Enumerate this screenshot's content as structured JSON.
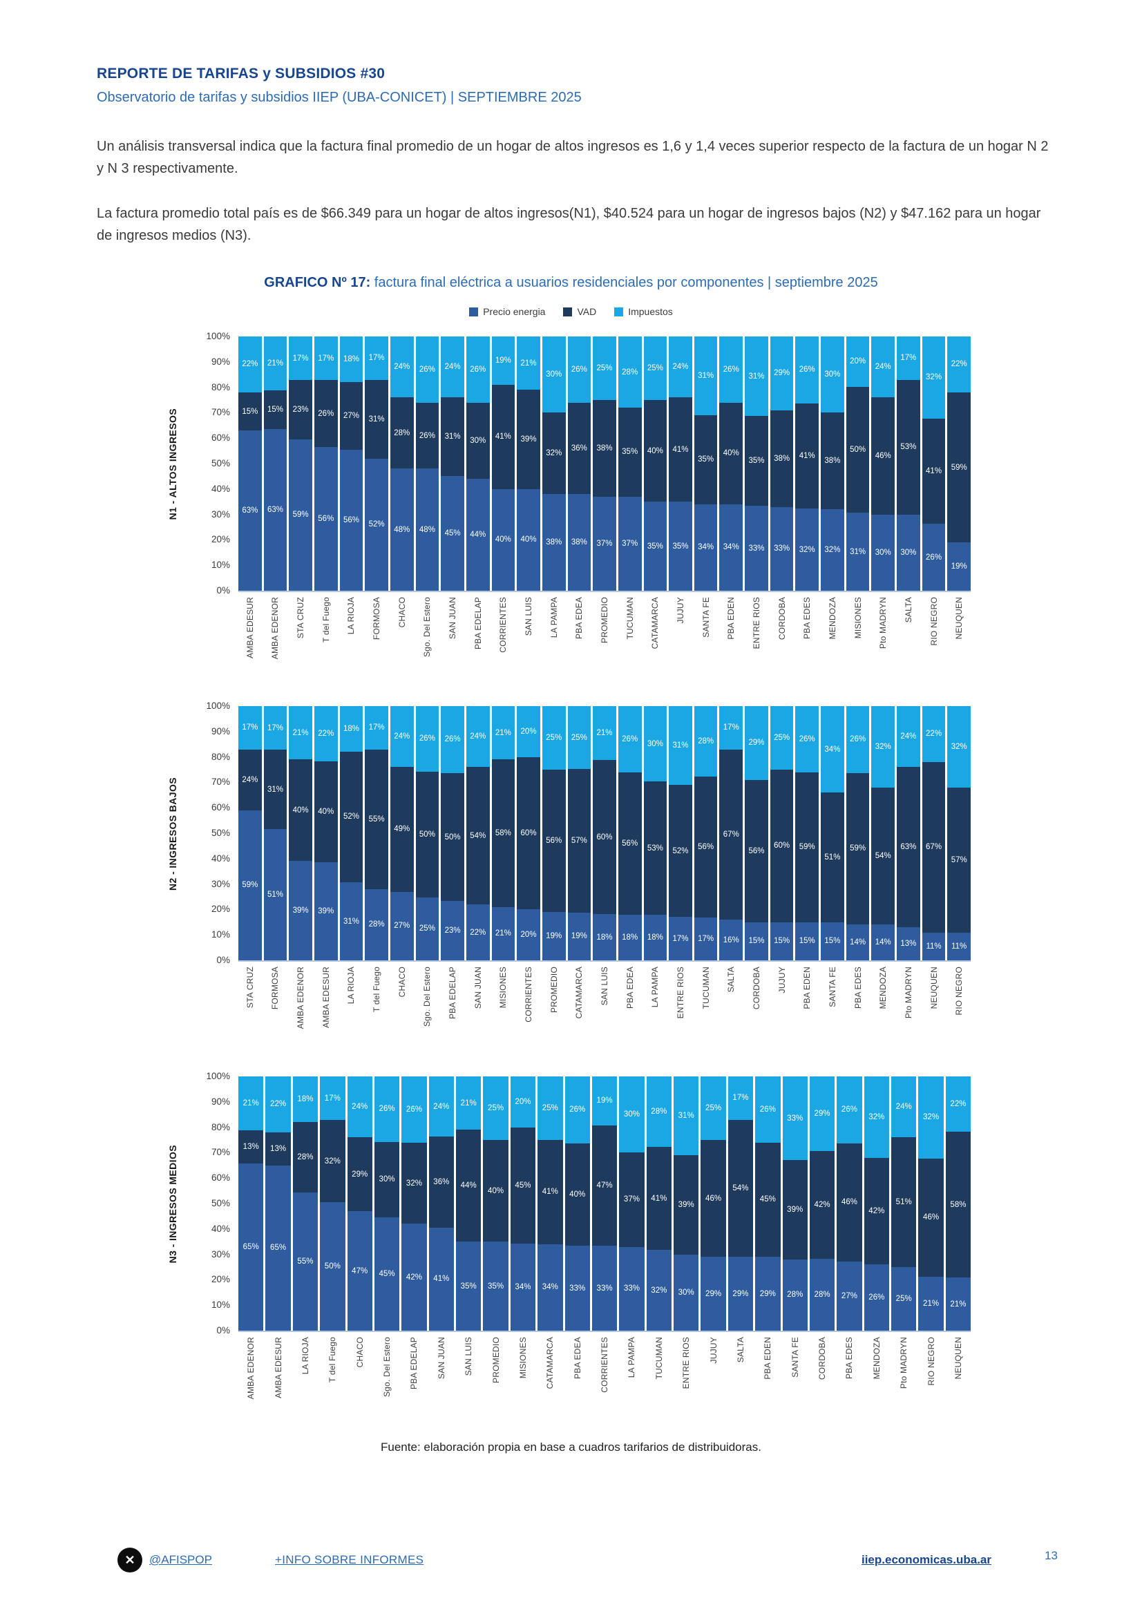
{
  "header": {
    "title": "REPORTE DE TARIFAS y SUBSIDIOS #30",
    "subtitle": "Observatorio de tarifas y subsidios IIEP (UBA-CONICET) | SEPTIEMBRE 2025"
  },
  "paragraphs": {
    "p1": "Un análisis transversal indica que la factura final promedio de un hogar de altos ingresos es 1,6 y 1,4 veces superior respecto de la factura de un hogar N 2 y N 3 respectivamente.",
    "p2": "La factura promedio total país es de $66.349 para un hogar de altos ingresos(N1), $40.524 para un hogar de ingresos bajos (N2) y $47.162 para un hogar de ingresos medios (N3)."
  },
  "figure": {
    "label": "GRAFICO Nº 17:",
    "title": " factura final eléctrica a usuarios residenciales por componentes | septiembre 2025"
  },
  "legend": [
    {
      "label": "Precio energia",
      "color": "#2E5C9E"
    },
    {
      "label": "VAD",
      "color": "#1E3A5C"
    },
    {
      "label": "Impuestos",
      "color": "#1BA7E3"
    }
  ],
  "colors": {
    "precio": "#2E5C9E",
    "vad": "#1E3A5C",
    "impuestos": "#1BA7E3",
    "accent_dark_blue": "#17458F",
    "accent_blue": "#2D6CB5"
  },
  "y_axis_ticks": [
    "100%",
    "90%",
    "80%",
    "70%",
    "60%",
    "50%",
    "40%",
    "30%",
    "20%",
    "10%",
    "0%"
  ],
  "chart_data": [
    {
      "type": "bar",
      "stacked": true,
      "section_label": "N1 - ALTOS INGRESOS",
      "ylim": [
        0,
        100
      ],
      "grid": false,
      "legend_position": "top",
      "categories": [
        "AMBA EDESUR",
        "AMBA EDENOR",
        "STA CRUZ",
        "T del Fuego",
        "LA RIOJA",
        "FORMOSA",
        "CHACO",
        "Sgo. Del Estero",
        "SAN JUAN",
        "PBA EDELAP",
        "CORRIENTES",
        "SAN LUIS",
        "LA PAMPA",
        "PBA EDEA",
        "PROMEDIO",
        "TUCUMAN",
        "CATAMARCA",
        "JUJUY",
        "SANTA FE",
        "PBA EDEN",
        "ENTRE RIOS",
        "CORDOBA",
        "PBA EDES",
        "MENDOZA",
        "MISIONES",
        "Pto MADRYN",
        "SALTA",
        "RIO NEGRO",
        "NEUQUEN"
      ],
      "series": [
        {
          "name": "Precio energia",
          "values": [
            63,
            63,
            59,
            56,
            56,
            52,
            48,
            48,
            45,
            44,
            40,
            40,
            38,
            38,
            37,
            37,
            35,
            35,
            34,
            34,
            33,
            33,
            32,
            32,
            31,
            30,
            30,
            26,
            19
          ]
        },
        {
          "name": "VAD",
          "values": [
            15,
            15,
            23,
            26,
            27,
            31,
            28,
            26,
            31,
            30,
            41,
            39,
            32,
            36,
            38,
            35,
            40,
            41,
            35,
            40,
            35,
            38,
            41,
            38,
            50,
            46,
            53,
            41,
            59
          ]
        },
        {
          "name": "Impuestos",
          "values": [
            22,
            21,
            17,
            17,
            18,
            17,
            24,
            26,
            24,
            26,
            19,
            21,
            30,
            26,
            25,
            28,
            25,
            24,
            31,
            26,
            31,
            29,
            26,
            30,
            20,
            24,
            17,
            32,
            22
          ]
        }
      ]
    },
    {
      "type": "bar",
      "stacked": true,
      "section_label": "N2 - INGRESOS BAJOS",
      "ylim": [
        0,
        100
      ],
      "grid": false,
      "legend_position": "top",
      "categories": [
        "STA CRUZ",
        "FORMOSA",
        "AMBA EDENOR",
        "AMBA EDESUR",
        "LA RIOJA",
        "T del Fuego",
        "CHACO",
        "Sgo. Del Estero",
        "PBA EDELAP",
        "SAN JUAN",
        "MISIONES",
        "CORRIENTES",
        "PROMEDIO",
        "CATAMARCA",
        "SAN LUIS",
        "PBA EDEA",
        "LA PAMPA",
        "ENTRE RIOS",
        "TUCUMAN",
        "SALTA",
        "CORDOBA",
        "JUJUY",
        "PBA EDEN",
        "SANTA FE",
        "PBA EDES",
        "MENDOZA",
        "Pto MADRYN",
        "NEUQUEN",
        "RIO NEGRO"
      ],
      "series": [
        {
          "name": "Precio energia",
          "values": [
            59,
            51,
            39,
            39,
            31,
            28,
            27,
            25,
            23,
            22,
            21,
            20,
            19,
            19,
            18,
            18,
            18,
            17,
            17,
            16,
            15,
            15,
            15,
            15,
            14,
            14,
            13,
            11,
            11
          ]
        },
        {
          "name": "VAD",
          "values": [
            24,
            31,
            40,
            40,
            52,
            55,
            49,
            50,
            50,
            54,
            58,
            60,
            56,
            57,
            60,
            56,
            53,
            52,
            56,
            67,
            56,
            60,
            59,
            51,
            59,
            54,
            63,
            67,
            57
          ]
        },
        {
          "name": "Impuestos",
          "values": [
            17,
            17,
            21,
            22,
            18,
            17,
            24,
            26,
            26,
            24,
            21,
            20,
            25,
            25,
            21,
            26,
            30,
            31,
            28,
            17,
            29,
            25,
            26,
            34,
            26,
            32,
            24,
            22,
            32
          ]
        }
      ]
    },
    {
      "type": "bar",
      "stacked": true,
      "section_label": "N3 - INGRESOS MEDIOS",
      "ylim": [
        0,
        100
      ],
      "grid": false,
      "legend_position": "top",
      "categories": [
        "AMBA EDENOR",
        "AMBA EDESUR",
        "LA RIOJA",
        "T del Fuego",
        "CHACO",
        "Sgo. Del Estero",
        "PBA EDELAP",
        "SAN JUAN",
        "SAN LUIS",
        "PROMEDIO",
        "MISIONES",
        "CATAMARCA",
        "PBA EDEA",
        "CORRIENTES",
        "LA PAMPA",
        "TUCUMAN",
        "ENTRE RIOS",
        "JUJUY",
        "SALTA",
        "PBA EDEN",
        "SANTA FE",
        "CORDOBA",
        "PBA EDES",
        "MENDOZA",
        "Pto MADRYN",
        "RIO NEGRO",
        "NEUQUEN"
      ],
      "series": [
        {
          "name": "Precio energia",
          "values": [
            65,
            65,
            55,
            50,
            47,
            45,
            42,
            41,
            35,
            35,
            34,
            34,
            33,
            33,
            33,
            32,
            30,
            29,
            29,
            29,
            28,
            28,
            27,
            26,
            25,
            21,
            21
          ]
        },
        {
          "name": "VAD",
          "values": [
            13,
            13,
            28,
            32,
            29,
            30,
            32,
            36,
            44,
            40,
            45,
            41,
            40,
            47,
            37,
            41,
            39,
            46,
            54,
            45,
            39,
            42,
            46,
            42,
            51,
            46,
            58
          ]
        },
        {
          "name": "Impuestos",
          "values": [
            21,
            22,
            18,
            17,
            24,
            26,
            26,
            24,
            21,
            25,
            20,
            25,
            26,
            19,
            30,
            28,
            31,
            25,
            17,
            26,
            33,
            29,
            26,
            32,
            24,
            32,
            22
          ]
        }
      ]
    }
  ],
  "source": "Fuente: elaboración propia en base a cuadros tarifarios de distribuidoras.",
  "footer": {
    "x_icon_glyph": "✕",
    "x_handle": "@AFISPOP",
    "info_link": "+INFO SOBRE INFORMES",
    "site_link": "iiep.economicas.uba.ar",
    "page_number": "13"
  }
}
